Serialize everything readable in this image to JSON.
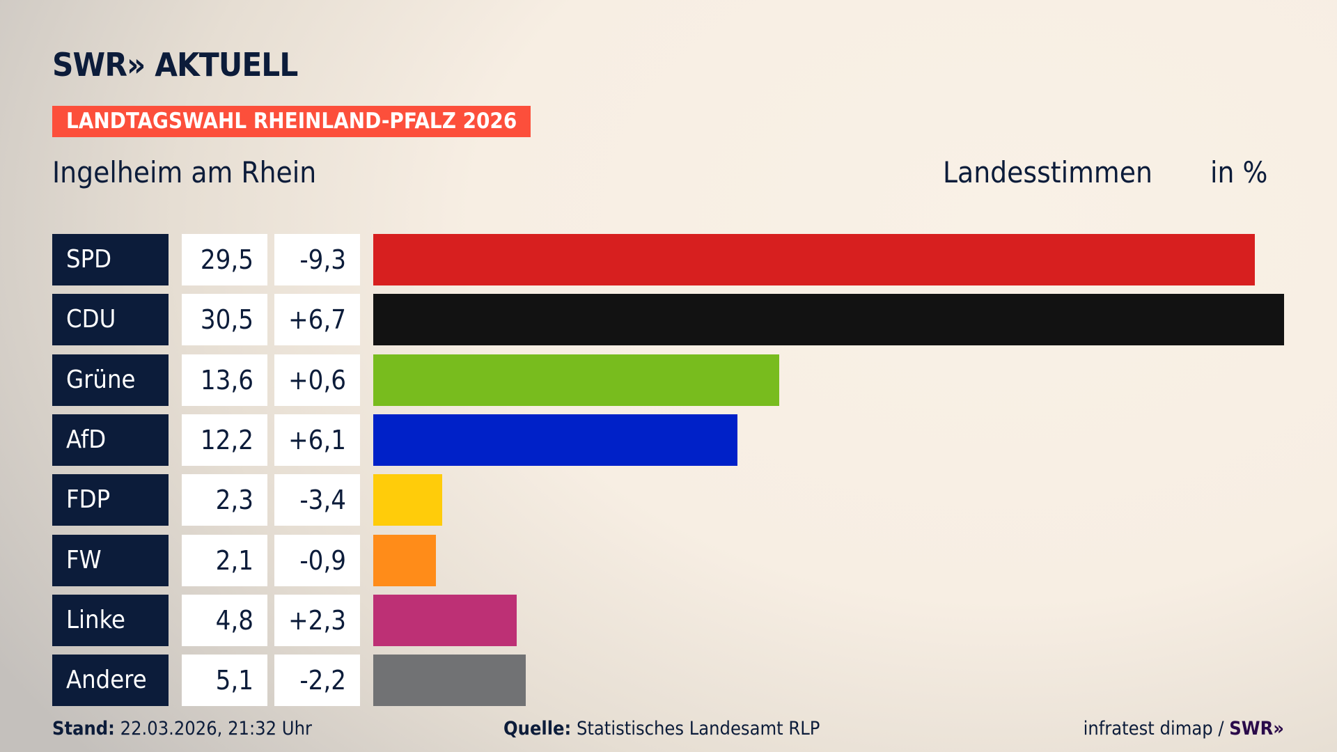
{
  "header": {
    "logo": "SWR» AKTUELL",
    "banner": "LANDTAGSWAHL RHEINLAND-PFALZ 2026",
    "region": "Ingelheim am Rhein",
    "metric": "Landesstimmen",
    "unit": "in %"
  },
  "chart_data": {
    "type": "bar",
    "orientation": "horizontal",
    "categories": [
      "SPD",
      "CDU",
      "Grüne",
      "AfD",
      "FDP",
      "FW",
      "Linke",
      "Andere"
    ],
    "values": [
      "29,5",
      "30,5",
      "13,6",
      "12,2",
      "2,3",
      "2,1",
      "4,8",
      "5,1"
    ],
    "numeric_values": [
      29.5,
      30.5,
      13.6,
      12.2,
      2.3,
      2.1,
      4.8,
      5.1
    ],
    "changes": [
      "-9,3",
      "+6,7",
      "+0,6",
      "+6,1",
      "-3,4",
      "-0,9",
      "+2,3",
      "-2,2"
    ],
    "colors": [
      "#d71f1f",
      "#121212",
      "#78bc1e",
      "#0021c8",
      "#ffcc0a",
      "#ff8c19",
      "#bd3075",
      "#717274"
    ],
    "grid": false
  },
  "footer": {
    "stand_label": "Stand:",
    "stand_value": "22.03.2026, 21:32 Uhr",
    "source_label": "Quelle:",
    "source_value": "Statistisches Landesamt RLP",
    "credit": "infratest dimap /",
    "credit_logo": "SWR»"
  }
}
